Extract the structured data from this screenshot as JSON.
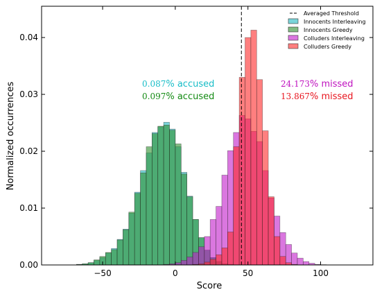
{
  "chart_data": {
    "type": "bar",
    "title": "",
    "xlabel": "Score",
    "ylabel": "Normalized occurrences",
    "xlim": [
      -92,
      136
    ],
    "ylim": [
      0,
      0.0455
    ],
    "xticks": [
      -50,
      0,
      50,
      100
    ],
    "xtick_labels": [
      "−50",
      "0",
      "50",
      "100"
    ],
    "yticks": [
      0,
      0.01,
      0.02,
      0.03,
      0.04
    ],
    "ytick_labels": [
      "0.00",
      "0.01",
      "0.02",
      "0.03",
      "0.04"
    ],
    "grid": false,
    "legend_position": "top-right",
    "bin_start": -80,
    "bin_width": 4,
    "threshold": {
      "name": "Averaged Threshold",
      "x": 45.5,
      "color": "#000000",
      "style": "dashed"
    },
    "series": [
      {
        "name": "Innocents Interleaving",
        "color": "#22b8bf",
        "alpha": 0.6,
        "values": [
          0,
          0,
          0,
          0.0001,
          0.0002,
          0.0004,
          0.0008,
          0.0013,
          0.0021,
          0.0029,
          0.0045,
          0.0063,
          0.0091,
          0.0128,
          0.0166,
          0.0197,
          0.0233,
          0.0243,
          0.0251,
          0.0239,
          0.0208,
          0.0163,
          0.0121,
          0.008,
          0.0048,
          0.0026,
          0.0013,
          0.0006,
          0.0002,
          0.0001,
          3e-05,
          1e-05,
          0,
          0,
          0,
          0,
          0,
          0,
          0,
          0,
          0,
          0,
          0,
          0,
          0,
          0,
          0,
          0,
          0,
          0
        ]
      },
      {
        "name": "Innocents Greedy",
        "color": "#2f8f2f",
        "alpha": 0.6,
        "values": [
          0,
          0,
          0,
          0.0001,
          0.0002,
          0.0004,
          0.0009,
          0.0015,
          0.0022,
          0.0027,
          0.0044,
          0.0062,
          0.0093,
          0.0126,
          0.0162,
          0.0208,
          0.0231,
          0.0244,
          0.0246,
          0.0237,
          0.0213,
          0.016,
          0.012,
          0.008,
          0.0048,
          0.0026,
          0.0013,
          0.0006,
          0.0002,
          0.0001,
          3e-05,
          1e-05,
          0,
          0,
          0,
          0,
          0,
          0,
          0,
          0,
          0,
          0,
          0,
          0,
          0,
          0,
          0,
          0,
          0,
          0
        ]
      },
      {
        "name": "Colluders Interleaving",
        "color": "#c21dc9",
        "alpha": 0.6,
        "values": [
          0,
          0,
          0,
          0,
          0,
          0,
          0,
          0,
          0,
          0,
          0,
          0,
          0,
          0,
          0,
          0,
          0,
          0,
          0.0001,
          0.0002,
          0.0004,
          0.0008,
          0.0014,
          0.0022,
          0.0032,
          0.005,
          0.008,
          0.0103,
          0.0158,
          0.0201,
          0.0233,
          0.0263,
          0.0257,
          0.0235,
          0.0217,
          0.0166,
          0.0118,
          0.0086,
          0.0057,
          0.0036,
          0.0021,
          0.0012,
          0.0006,
          0.0003,
          0.0001,
          5e-05,
          2e-05,
          0,
          0,
          0
        ]
      },
      {
        "name": "Colluders Greedy",
        "color": "#ff2a2a",
        "alpha": 0.6,
        "values": [
          0,
          0,
          0,
          0,
          0,
          0,
          0,
          0,
          0,
          0,
          0,
          0,
          0,
          0,
          0,
          0,
          0,
          0,
          0,
          0,
          0,
          0,
          0,
          0.0001,
          0.0002,
          0.0005,
          0.001,
          0.0018,
          0.003,
          0.0058,
          0.0208,
          0.033,
          0.04,
          0.0413,
          0.0326,
          0.0236,
          0.012,
          0.005,
          0.0015,
          0.0004,
          0.0001,
          3e-05,
          0,
          0,
          0,
          0,
          0,
          0,
          0,
          0
        ]
      }
    ],
    "annotations": [
      {
        "value": "0.087",
        "suffix": "% accused",
        "color": "#17bdc7"
      },
      {
        "value": "0.097",
        "suffix": "% accused",
        "color": "#138a13"
      },
      {
        "value": "24.173",
        "suffix": "% missed",
        "color": "#bf12bf"
      },
      {
        "value": "13.867",
        "suffix": "% missed",
        "color": "#e8141e"
      }
    ]
  }
}
